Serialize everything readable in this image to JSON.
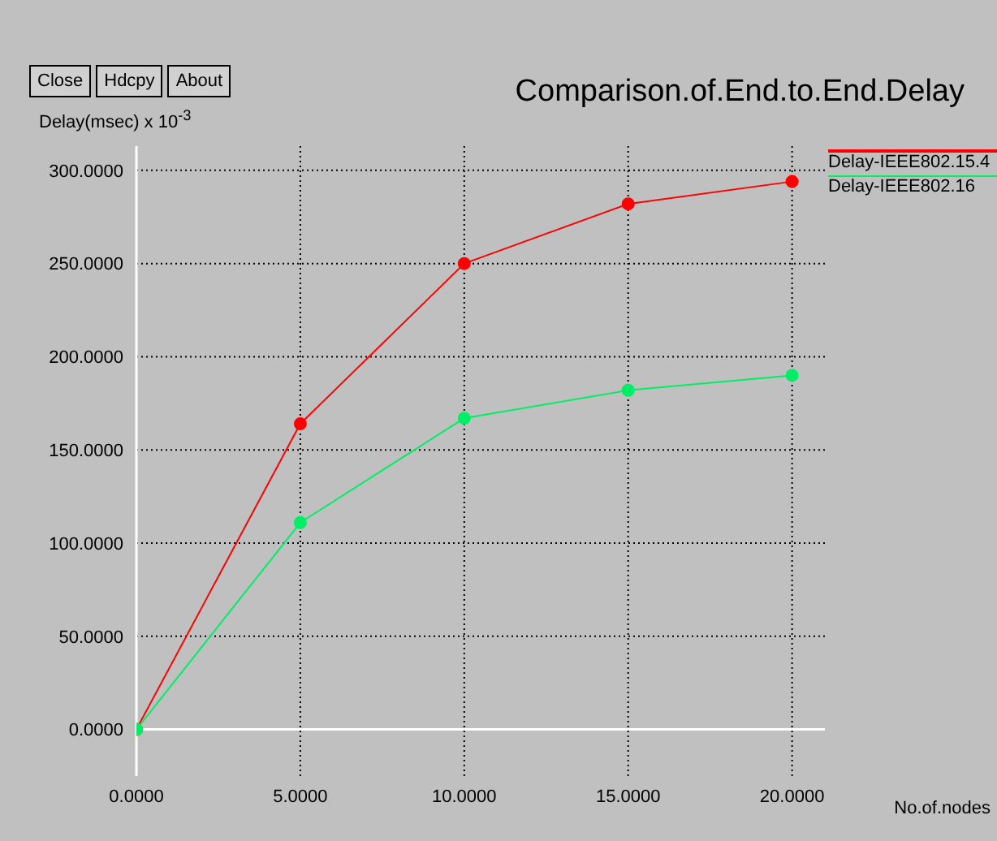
{
  "chart_data": {
    "type": "line",
    "title": "Comparison.of.End.to.End.Delay",
    "ylabel": "Delay(msec) x 10$^{-3}$",
    "xlabel": "No.of.nodes",
    "annotations": [
      "Close",
      "Hdcpy",
      "About"
    ],
    "x": [
      0,
      5,
      10,
      15,
      20
    ],
    "series": [
      {
        "name": "Delay-IEEE802.15.4",
        "color": "#ff0000",
        "values": [
          0,
          164,
          250,
          282,
          294
        ]
      },
      {
        "name": "Delay-IEEE802.16",
        "color": "#00ee66",
        "values": [
          0,
          111,
          167,
          182,
          190
        ]
      }
    ],
    "xlim": [
      0,
      21
    ],
    "ylim": [
      -25,
      313
    ],
    "xticks": [
      {
        "value": 0,
        "label": "0.0000"
      },
      {
        "value": 5,
        "label": "5.0000"
      },
      {
        "value": 10,
        "label": "10.0000"
      },
      {
        "value": 15,
        "label": "15.0000"
      },
      {
        "value": 20,
        "label": "20.0000"
      }
    ],
    "yticks": [
      {
        "value": 0,
        "label": "0.0000"
      },
      {
        "value": 50,
        "label": "50.0000"
      },
      {
        "value": 100,
        "label": "100.0000"
      },
      {
        "value": 150,
        "label": "150.0000"
      },
      {
        "value": 200,
        "label": "200.0000"
      },
      {
        "value": 250,
        "label": "250.0000"
      },
      {
        "value": 300,
        "label": "300.0000"
      }
    ],
    "grid": true,
    "legend": "right",
    "marker": "circle",
    "line_style": "solid"
  }
}
